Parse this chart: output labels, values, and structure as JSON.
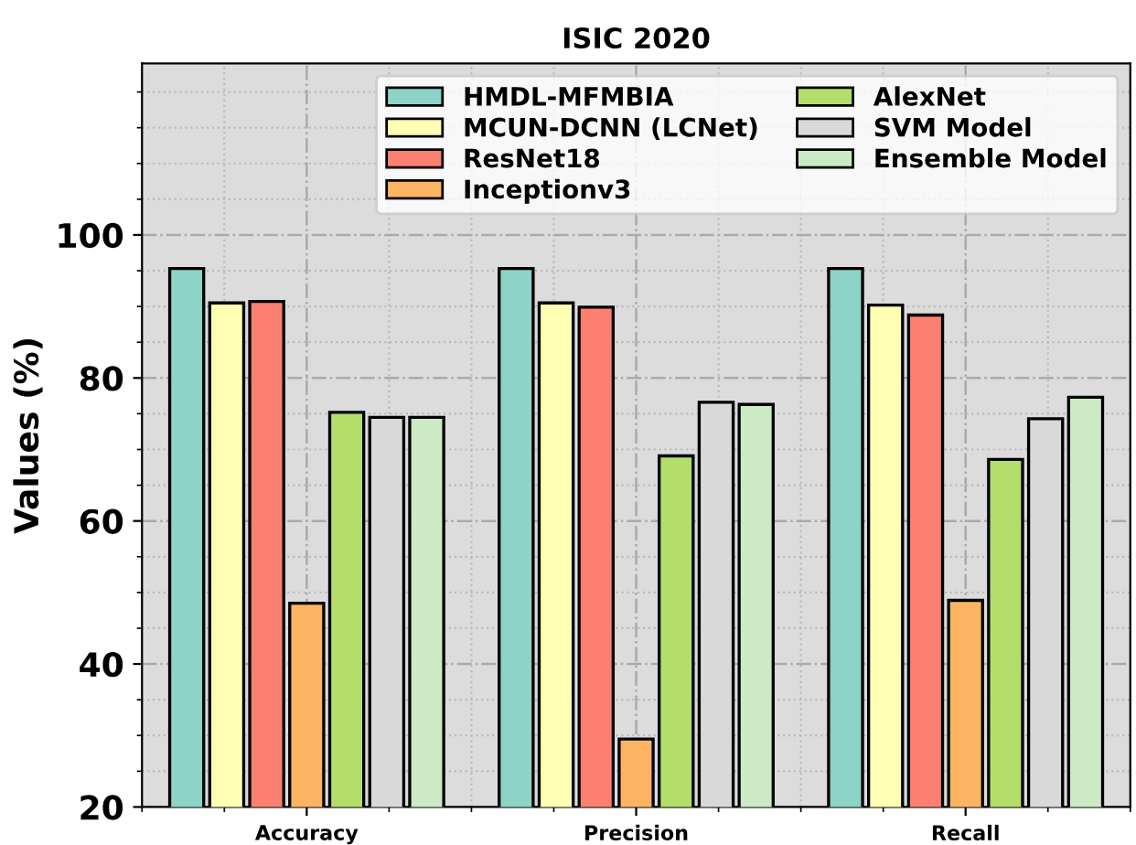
{
  "chart_data": {
    "type": "bar",
    "title": "ISIC 2020",
    "ylabel": "Values (%)",
    "categories": [
      "Accuracy",
      "Precision",
      "Recall"
    ],
    "series": [
      {
        "name": "HMDL-MFMBIA",
        "color": "#8dd3c7",
        "values": [
          95.3,
          95.3,
          95.3
        ]
      },
      {
        "name": "MCUN-DCNN (LCNet)",
        "color": "#ffffb3",
        "values": [
          90.5,
          90.5,
          90.2
        ]
      },
      {
        "name": "ResNet18",
        "color": "#fb8072",
        "values": [
          90.7,
          89.9,
          88.8
        ]
      },
      {
        "name": "Inceptionv3",
        "color": "#fdb462",
        "values": [
          48.5,
          29.5,
          48.9
        ]
      },
      {
        "name": "AlexNet",
        "color": "#b3de69",
        "values": [
          75.2,
          69.1,
          68.6
        ]
      },
      {
        "name": "SVM Model",
        "color": "#d9d9d9",
        "values": [
          74.5,
          76.6,
          74.3
        ]
      },
      {
        "name": "Ensemble Model",
        "color": "#ccebc5",
        "values": [
          74.5,
          76.3,
          77.3
        ]
      }
    ],
    "ylim": [
      20,
      124
    ],
    "yticks": [
      20,
      40,
      60,
      80,
      100
    ],
    "grid": true,
    "legend": "top right"
  }
}
